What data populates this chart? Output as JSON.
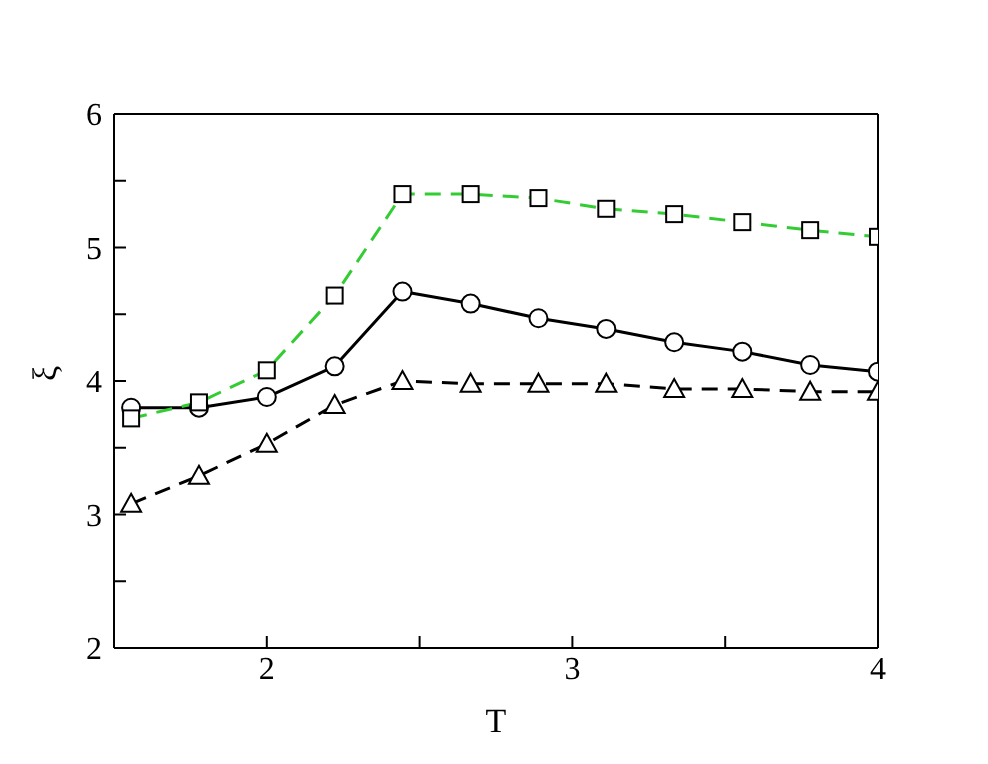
{
  "chart_data": {
    "type": "line",
    "xlabel": "T",
    "ylabel": "ξ",
    "xlim": [
      1.5,
      4
    ],
    "xticks": [
      2,
      {
        "value": 2.5,
        "label": null
      },
      3,
      {
        "value": 3.5,
        "label": null
      },
      4
    ],
    "ylim": [
      2,
      6
    ],
    "yticks": [
      2,
      {
        "value": 2.5,
        "label": null
      },
      3,
      {
        "value": 3.5,
        "label": null
      },
      4,
      {
        "value": 4.5,
        "label": null
      },
      5,
      {
        "value": 5.5,
        "label": null
      },
      6
    ],
    "x": [
      1.556,
      1.778,
      2,
      2.222,
      2.444,
      2.667,
      2.889,
      3.111,
      3.333,
      3.556,
      3.778,
      4
    ],
    "grid": false,
    "legend": false,
    "series": [
      {
        "color": "#33cc33",
        "marker": "square",
        "line_style": "dashed",
        "values": [
          3.72,
          3.84,
          4.08,
          4.64,
          5.4,
          5.4,
          5.37,
          5.29,
          5.25,
          5.19,
          5.13,
          5.08
        ]
      },
      {
        "color": "#000000",
        "marker": "circle",
        "line_style": "solid",
        "values": [
          3.8,
          3.8,
          3.88,
          4.11,
          4.67,
          4.58,
          4.47,
          4.39,
          4.29,
          4.22,
          4.12,
          4.07
        ]
      },
      {
        "color": "#000000",
        "marker": "triangle",
        "line_style": "dashed",
        "values": [
          3.08,
          3.29,
          3.53,
          3.82,
          4.0,
          3.98,
          3.98,
          3.98,
          3.94,
          3.94,
          3.92,
          3.92
        ]
      }
    ]
  }
}
